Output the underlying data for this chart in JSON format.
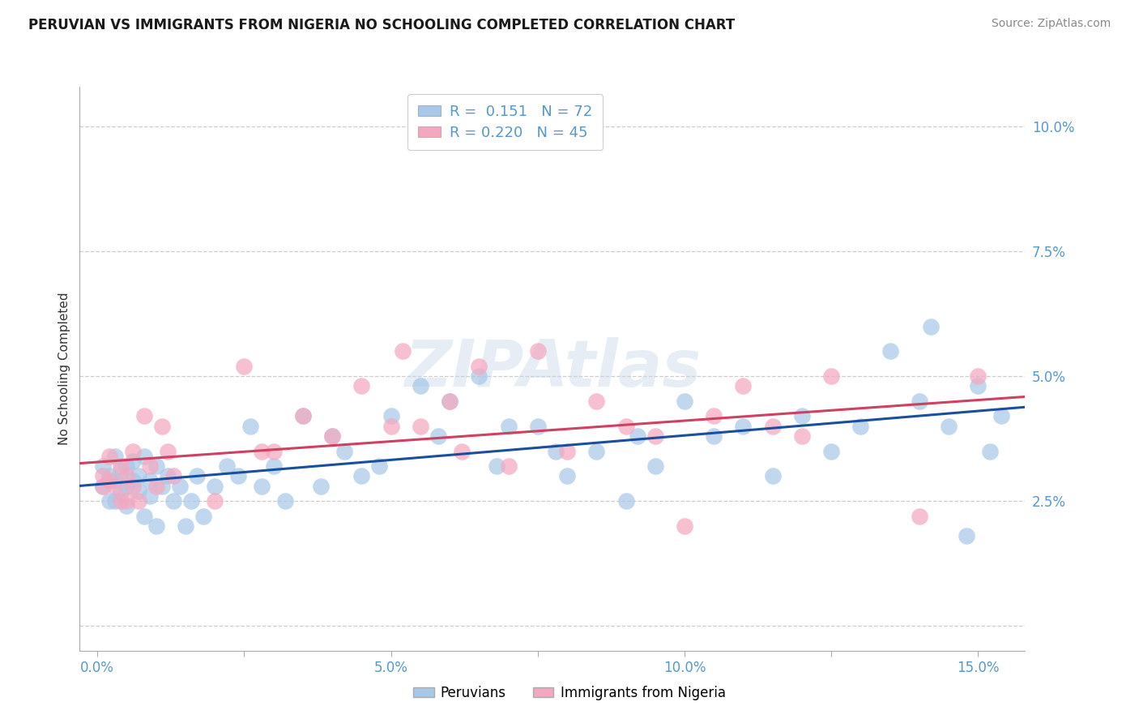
{
  "title": "PERUVIAN VS IMMIGRANTS FROM NIGERIA NO SCHOOLING COMPLETED CORRELATION CHART",
  "source": "Source: ZipAtlas.com",
  "ylabel": "No Schooling Completed",
  "legend_labels": [
    "Peruvians",
    "Immigrants from Nigeria"
  ],
  "legend_r": [
    "0.151",
    "0.220"
  ],
  "legend_n": [
    "72",
    "45"
  ],
  "peruvian_color": "#a8c8e8",
  "nigeria_color": "#f4a8c0",
  "peruvian_line_color": "#1a4fa0",
  "nigeria_line_color": "#d04060",
  "xlim": [
    -0.003,
    0.158
  ],
  "ylim": [
    -0.005,
    0.108
  ],
  "grid_color": "#cccccc",
  "background_color": "#ffffff",
  "watermark": "ZIPAtlas",
  "tick_color": "#5599cc",
  "title_color": "#1a1a1a",
  "source_color": "#888888",
  "peruvians_x": [
    0.001,
    0.001,
    0.002,
    0.002,
    0.003,
    0.003,
    0.003,
    0.004,
    0.004,
    0.005,
    0.005,
    0.005,
    0.006,
    0.006,
    0.007,
    0.007,
    0.008,
    0.008,
    0.009,
    0.009,
    0.01,
    0.01,
    0.011,
    0.012,
    0.013,
    0.014,
    0.015,
    0.016,
    0.017,
    0.018,
    0.02,
    0.022,
    0.024,
    0.026,
    0.028,
    0.03,
    0.032,
    0.035,
    0.038,
    0.04,
    0.042,
    0.045,
    0.048,
    0.05,
    0.055,
    0.058,
    0.06,
    0.065,
    0.068,
    0.07,
    0.075,
    0.078,
    0.08,
    0.085,
    0.09,
    0.092,
    0.095,
    0.1,
    0.105,
    0.11,
    0.115,
    0.12,
    0.125,
    0.13,
    0.135,
    0.14,
    0.142,
    0.145,
    0.148,
    0.15,
    0.152,
    0.154
  ],
  "peruvians_y": [
    0.032,
    0.028,
    0.03,
    0.025,
    0.034,
    0.029,
    0.025,
    0.031,
    0.027,
    0.032,
    0.028,
    0.024,
    0.033,
    0.029,
    0.03,
    0.027,
    0.034,
    0.022,
    0.029,
    0.026,
    0.032,
    0.02,
    0.028,
    0.03,
    0.025,
    0.028,
    0.02,
    0.025,
    0.03,
    0.022,
    0.028,
    0.032,
    0.03,
    0.04,
    0.028,
    0.032,
    0.025,
    0.042,
    0.028,
    0.038,
    0.035,
    0.03,
    0.032,
    0.042,
    0.048,
    0.038,
    0.045,
    0.05,
    0.032,
    0.04,
    0.04,
    0.035,
    0.03,
    0.035,
    0.025,
    0.038,
    0.032,
    0.045,
    0.038,
    0.04,
    0.03,
    0.042,
    0.035,
    0.04,
    0.055,
    0.045,
    0.06,
    0.04,
    0.018,
    0.048,
    0.035,
    0.042
  ],
  "nigeria_x": [
    0.001,
    0.001,
    0.002,
    0.002,
    0.003,
    0.004,
    0.004,
    0.005,
    0.005,
    0.006,
    0.006,
    0.007,
    0.008,
    0.009,
    0.01,
    0.011,
    0.012,
    0.013,
    0.02,
    0.025,
    0.028,
    0.03,
    0.035,
    0.04,
    0.045,
    0.05,
    0.052,
    0.055,
    0.06,
    0.062,
    0.065,
    0.07,
    0.075,
    0.08,
    0.085,
    0.09,
    0.095,
    0.1,
    0.105,
    0.11,
    0.115,
    0.12,
    0.125,
    0.14,
    0.15
  ],
  "nigeria_y": [
    0.03,
    0.028,
    0.034,
    0.029,
    0.028,
    0.025,
    0.032,
    0.03,
    0.025,
    0.028,
    0.035,
    0.025,
    0.042,
    0.032,
    0.028,
    0.04,
    0.035,
    0.03,
    0.025,
    0.052,
    0.035,
    0.035,
    0.042,
    0.038,
    0.048,
    0.04,
    0.055,
    0.04,
    0.045,
    0.035,
    0.052,
    0.032,
    0.055,
    0.035,
    0.045,
    0.04,
    0.038,
    0.02,
    0.042,
    0.048,
    0.04,
    0.038,
    0.05,
    0.022,
    0.05
  ]
}
